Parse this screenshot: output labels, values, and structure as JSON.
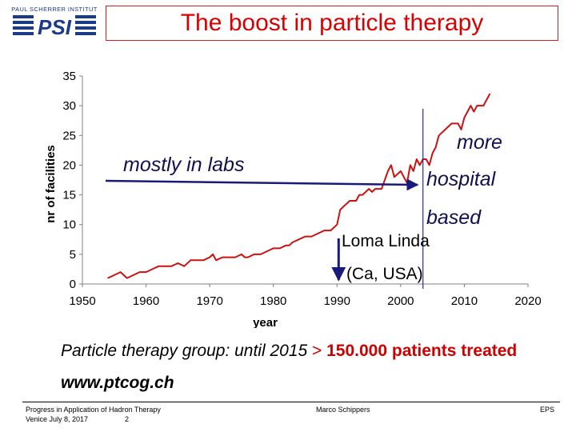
{
  "header": {
    "title": "The boost in particle therapy",
    "logo_text": "PAUL SCHERRER INSTITUT",
    "logo_mark": "PSI",
    "logo_color": "#1a3a8a"
  },
  "chart_data": {
    "type": "line",
    "title": "",
    "xlabel": "year",
    "ylabel": "nr of facilities",
    "xlim": [
      1950,
      2020
    ],
    "ylim": [
      0,
      35
    ],
    "x_ticks": [
      "1950",
      "1960",
      "1970",
      "1980",
      "1990",
      "2000",
      "2010",
      "2020"
    ],
    "y_ticks": [
      "0",
      "5",
      "10",
      "15",
      "20",
      "25",
      "30",
      "35"
    ],
    "grid": false,
    "line_color": "#cc1111",
    "series": [
      {
        "x": [
          1954,
          1956,
          1957,
          1958,
          1959,
          1960,
          1961,
          1962,
          1963,
          1964,
          1965,
          1966,
          1967,
          1968,
          1969,
          1970,
          1970.5,
          1971,
          1972,
          1973,
          1974,
          1975,
          1975.5,
          1976,
          1977,
          1978,
          1979,
          1980,
          1981,
          1982,
          1982.5,
          1983,
          1984,
          1985,
          1986,
          1987,
          1988,
          1989,
          1990,
          1990.5,
          1991,
          1992,
          1993,
          1993.5,
          1994,
          1995,
          1995.5,
          1996,
          1996.5,
          1997,
          1998,
          1998.5,
          1999,
          2000,
          2000.5,
          2001,
          2001.5,
          2002,
          2002.5,
          2003,
          2003.5,
          2004,
          2004.5,
          2005,
          2005.5,
          2006,
          2007,
          2008,
          2008.5,
          2009,
          2009.5,
          2010,
          2010.5,
          2011,
          2011.5,
          2012,
          2013,
          2014
        ],
        "y": [
          1,
          2,
          1,
          1.5,
          2,
          2,
          2.5,
          3,
          3,
          3,
          3.5,
          3,
          4,
          4,
          4,
          4.5,
          5,
          4,
          4.5,
          4.5,
          4.5,
          5,
          4.5,
          4.5,
          5,
          5,
          5.5,
          6,
          6,
          6.5,
          6.5,
          7,
          7.5,
          8,
          8,
          8.5,
          9,
          9,
          10,
          12.5,
          13,
          14,
          14,
          15,
          15,
          16,
          15.5,
          16,
          16,
          16,
          19,
          20,
          18,
          19,
          18,
          17,
          20,
          19,
          21,
          20,
          21,
          21,
          20,
          22,
          23,
          25,
          26,
          27,
          27,
          27,
          26,
          28,
          29,
          30,
          29,
          30,
          30,
          32
        ]
      }
    ],
    "annotations": [
      {
        "text": "mostly in labs"
      },
      {
        "text": "more"
      },
      {
        "text": "hospital"
      },
      {
        "text": "based"
      },
      {
        "text": "Loma Linda",
        "x": 1990
      },
      {
        "text": "(Ca, USA)"
      },
      {
        "text": "",
        "vertical_line_x": 2003.5
      }
    ]
  },
  "note": {
    "stat_prefix": "Particle therapy group:  until 2015 ",
    "stat_arrow": ">",
    "stat_value": " 150.000 patients treated",
    "url": "www.ptcog.ch"
  },
  "footer": {
    "left_line1": "Progress in Application of Hadron Therapy",
    "left_line2": "Venice July 8, 2017",
    "page": "2",
    "author": "Marco Schippers",
    "right": "EPS"
  }
}
